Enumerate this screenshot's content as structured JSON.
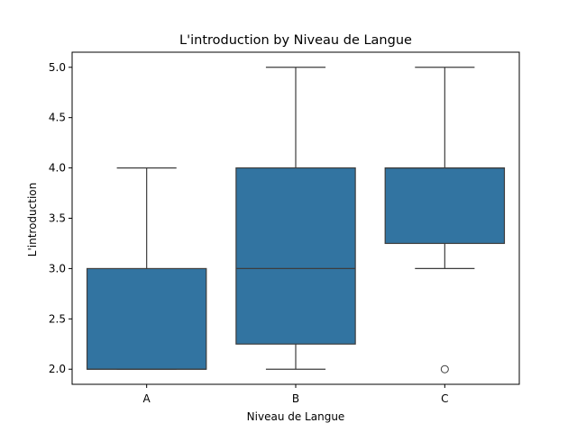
{
  "chart_data": {
    "type": "box",
    "title": "L'introduction by Niveau de Langue",
    "xlabel": "Niveau de Langue",
    "ylabel": "L'introduction",
    "ylim": [
      1.85,
      5.15
    ],
    "yticks": [
      "2.0",
      "2.5",
      "3.0",
      "3.5",
      "4.0",
      "4.5",
      "5.0"
    ],
    "grid": false,
    "box_color": "#3274a1",
    "line_color": "#3d3d3d",
    "categories": [
      "A",
      "B",
      "C"
    ],
    "boxes": [
      {
        "category": "A",
        "whisker_low": 2.0,
        "q1": 2.0,
        "median": 2.0,
        "q3": 3.0,
        "whisker_high": 4.0,
        "outliers": []
      },
      {
        "category": "B",
        "whisker_low": 2.0,
        "q1": 2.25,
        "median": 3.0,
        "q3": 4.0,
        "whisker_high": 5.0,
        "outliers": []
      },
      {
        "category": "C",
        "whisker_low": 3.0,
        "q1": 3.25,
        "median": 4.0,
        "q3": 4.0,
        "whisker_high": 5.0,
        "outliers": [
          2.0
        ]
      }
    ]
  }
}
